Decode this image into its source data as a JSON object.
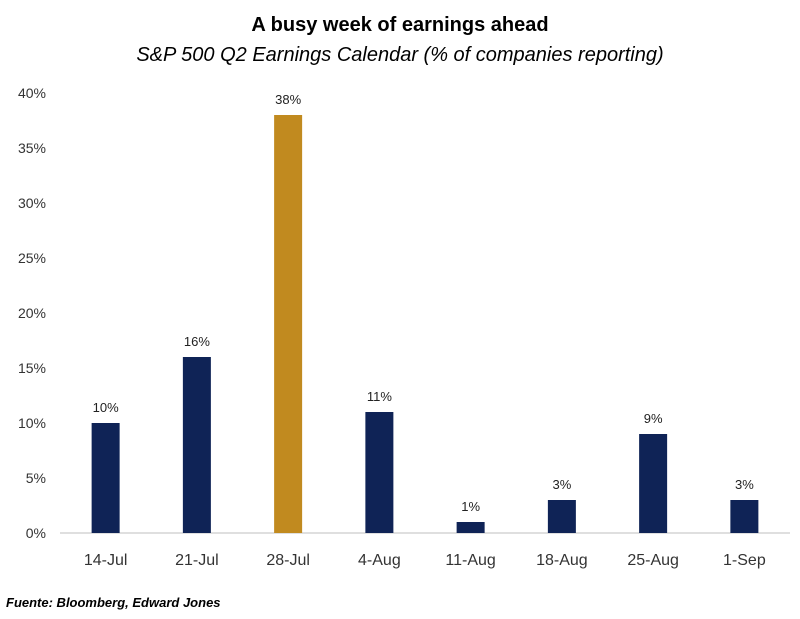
{
  "chart_data": {
    "type": "bar",
    "title": "A busy week of earnings ahead",
    "subtitle": "S&P 500 Q2 Earnings Calendar (% of companies reporting)",
    "categories": [
      "14-Jul",
      "21-Jul",
      "28-Jul",
      "4-Aug",
      "11-Aug",
      "18-Aug",
      "25-Aug",
      "1-Sep"
    ],
    "values": [
      10,
      16,
      38,
      11,
      1,
      3,
      9,
      3
    ],
    "data_labels": [
      "10%",
      "16%",
      "38%",
      "11%",
      "1%",
      "3%",
      "9%",
      "3%"
    ],
    "highlight_index": 2,
    "ylim": [
      0,
      40
    ],
    "yticks": [
      0,
      5,
      10,
      15,
      20,
      25,
      30,
      35,
      40
    ],
    "ytick_labels": [
      "0%",
      "5%",
      "10%",
      "15%",
      "20%",
      "25%",
      "30%",
      "35%",
      "40%"
    ],
    "xlabel": "",
    "ylabel": "",
    "grid": false,
    "colors": {
      "bar": "#0f2356",
      "highlight": "#c18a1f"
    }
  },
  "source": "Fuente: Bloomberg, Edward Jones"
}
